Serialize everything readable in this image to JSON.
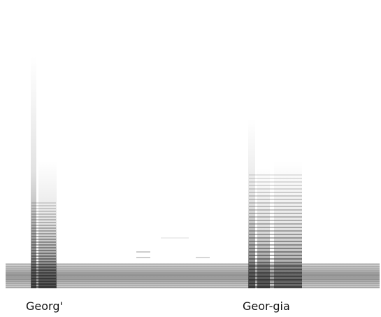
{
  "labels": [
    "Georg'",
    "Geor-gia"
  ]
}
